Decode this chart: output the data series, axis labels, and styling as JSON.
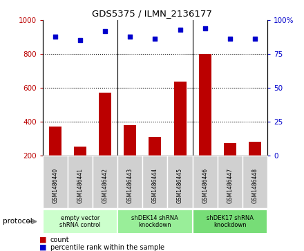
{
  "title": "GDS5375 / ILMN_2136177",
  "samples": [
    "GSM1486440",
    "GSM1486441",
    "GSM1486442",
    "GSM1486443",
    "GSM1486444",
    "GSM1486445",
    "GSM1486446",
    "GSM1486447",
    "GSM1486448"
  ],
  "counts": [
    370,
    255,
    570,
    380,
    310,
    635,
    800,
    275,
    280
  ],
  "percentiles": [
    88,
    85,
    92,
    88,
    86,
    93,
    94,
    86,
    86
  ],
  "bar_color": "#bb0000",
  "dot_color": "#0000cc",
  "ylim_left": [
    200,
    1000
  ],
  "ylim_right": [
    0,
    100
  ],
  "yticks_left": [
    200,
    400,
    600,
    800,
    1000
  ],
  "yticks_right": [
    0,
    25,
    50,
    75,
    100
  ],
  "grid_values": [
    400,
    600,
    800
  ],
  "protocols": [
    {
      "label": "empty vector\nshRNA control",
      "start": 0,
      "end": 2,
      "color": "#ccffcc"
    },
    {
      "label": "shDEK14 shRNA\nknockdown",
      "start": 3,
      "end": 5,
      "color": "#99ee99"
    },
    {
      "label": "shDEK17 shRNA\nknockdown",
      "start": 6,
      "end": 8,
      "color": "#77dd77"
    }
  ],
  "legend_count_label": "count",
  "legend_percentile_label": "percentile rank within the sample",
  "protocol_label": "protocol",
  "plot_bg_color": "#d8d8d8",
  "tick_box_color": "#d0d0d0"
}
